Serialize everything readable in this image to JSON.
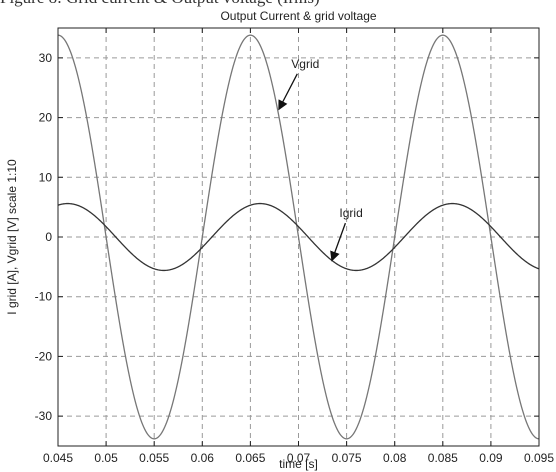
{
  "header_crop_text": "Figure 8: Grid current & Output voltage (Irms)",
  "chart_data": {
    "type": "line",
    "title": "Output Current & grid voltage",
    "xlabel": "time [s]",
    "ylabel": "I grid [A], Vgrid [V] scale 1:10",
    "xlim": [
      0.045,
      0.095
    ],
    "ylim": [
      -35,
      35
    ],
    "xticks": [
      0.045,
      0.05,
      0.055,
      0.06,
      0.065,
      0.07,
      0.075,
      0.08,
      0.085,
      0.09,
      0.095
    ],
    "xtick_labels": [
      "0.045",
      "0.05",
      "0.055",
      "0.06",
      "0.065",
      "0.07",
      "0.075",
      "0.08",
      "0.085",
      "0.09",
      "0.095"
    ],
    "yticks": [
      -30,
      -20,
      -10,
      0,
      10,
      20,
      30
    ],
    "ytick_labels": [
      "-30",
      "-20",
      "-10",
      "0",
      "10",
      "20",
      "30"
    ],
    "grid": true,
    "frequency_hz": 50,
    "series": [
      {
        "name": "Vgrid",
        "amplitude": 33.8,
        "phase_deg": 0,
        "peaks": [
          [
            0.045,
            33.8
          ],
          [
            0.065,
            33.8
          ],
          [
            0.085,
            33.8
          ]
        ],
        "troughs": [
          [
            0.055,
            -33.8
          ],
          [
            0.075,
            -33.8
          ]
        ],
        "color": "#777777"
      },
      {
        "name": "Igrid",
        "amplitude": 5.6,
        "phase_deg": -18,
        "peaks": [
          [
            0.046,
            5.6
          ],
          [
            0.066,
            5.6
          ],
          [
            0.086,
            5.6
          ]
        ],
        "troughs": [
          [
            0.056,
            -5.6
          ],
          [
            0.076,
            -5.6
          ]
        ],
        "color": "#333333"
      }
    ],
    "annotations": [
      {
        "text": "Vgrid",
        "at": [
          0.0705,
          29
        ],
        "arrow_to": [
          0.068,
          21.5
        ]
      },
      {
        "text": "Igrid",
        "at": [
          0.0755,
          4
        ],
        "arrow_to": [
          0.0735,
          -3.8
        ]
      }
    ]
  }
}
